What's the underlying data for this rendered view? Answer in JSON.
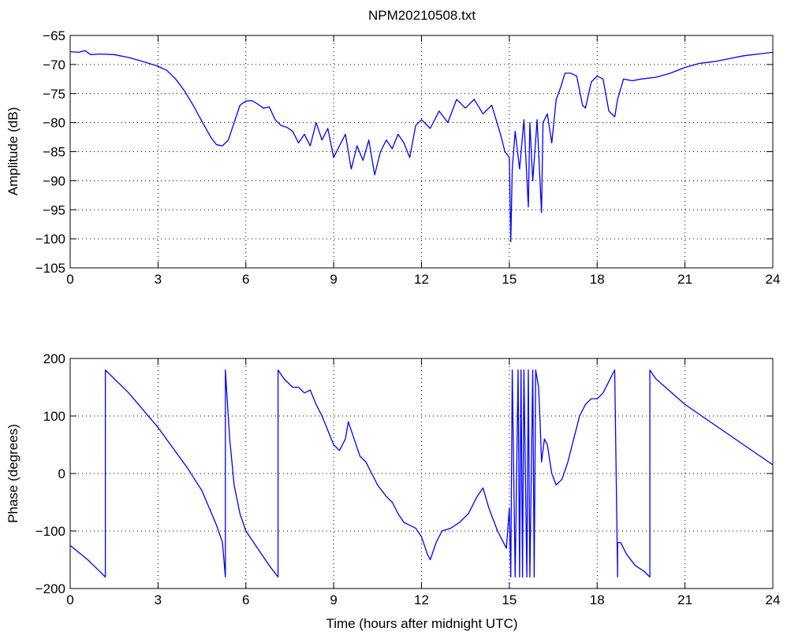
{
  "chart_data": [
    {
      "type": "line",
      "title": "NPM20210508.txt",
      "xlabel": "",
      "ylabel": "Amplitude (dB)",
      "xlim": [
        0,
        24
      ],
      "ylim": [
        -105,
        -65
      ],
      "xticks": [
        0,
        3,
        6,
        9,
        12,
        15,
        18,
        21,
        24
      ],
      "yticks": [
        -65,
        -70,
        -75,
        -80,
        -85,
        -90,
        -95,
        -100,
        -105
      ],
      "xtick_labels": [
        "0",
        "3",
        "6",
        "9",
        "12",
        "15",
        "18",
        "21",
        "24"
      ],
      "ytick_labels": [
        "−65",
        "−70",
        "−75",
        "−80",
        "−85",
        "−90",
        "−95",
        "−100",
        "−105"
      ],
      "grid": true,
      "color": "#0000ff",
      "series": [
        {
          "x": [
            0,
            0.3,
            0.5,
            0.7,
            1.0,
            1.5,
            2.0,
            2.5,
            3.0,
            3.3,
            3.6,
            3.9,
            4.2,
            4.5,
            4.8,
            5.0,
            5.2,
            5.4,
            5.6,
            5.8,
            6.0,
            6.2,
            6.4,
            6.6,
            6.8,
            7.0,
            7.2,
            7.4,
            7.6,
            7.8,
            8.0,
            8.2,
            8.4,
            8.6,
            8.8,
            9.0,
            9.2,
            9.4,
            9.6,
            9.8,
            10.0,
            10.2,
            10.4,
            10.6,
            10.8,
            11.0,
            11.2,
            11.4,
            11.6,
            11.8,
            12.0,
            12.3,
            12.6,
            12.9,
            13.2,
            13.5,
            13.8,
            14.1,
            14.4,
            14.7,
            14.85,
            15.0,
            15.05,
            15.1,
            15.2,
            15.35,
            15.5,
            15.65,
            15.7,
            15.8,
            15.95,
            16.1,
            16.15,
            16.3,
            16.45,
            16.6,
            16.75,
            16.9,
            17.1,
            17.3,
            17.5,
            17.6,
            17.8,
            18.0,
            18.2,
            18.4,
            18.6,
            18.7,
            18.9,
            19.2,
            19.5,
            20.0,
            20.5,
            21.0,
            21.5,
            22.0,
            22.5,
            23.0,
            23.5,
            24.0
          ],
          "values": [
            -67.8,
            -67.9,
            -67.6,
            -68.3,
            -68.2,
            -68.3,
            -68.8,
            -69.5,
            -70.3,
            -71.0,
            -72.5,
            -74.5,
            -77.0,
            -79.8,
            -82.5,
            -83.8,
            -84.0,
            -83.0,
            -80.0,
            -77.0,
            -76.3,
            -76.2,
            -76.8,
            -77.5,
            -77.3,
            -79.5,
            -80.5,
            -80.8,
            -81.5,
            -83.5,
            -82.0,
            -84.0,
            -80.0,
            -83.0,
            -81.0,
            -86.0,
            -84.0,
            -82.0,
            -88.0,
            -84.0,
            -86.5,
            -83.0,
            -89.0,
            -85.0,
            -83.0,
            -84.5,
            -82.0,
            -83.5,
            -86.0,
            -80.5,
            -79.5,
            -81.0,
            -78.0,
            -80.0,
            -76.0,
            -77.5,
            -76.0,
            -78.5,
            -77.0,
            -82.0,
            -85.0,
            -86.0,
            -100.5,
            -88.0,
            -81.5,
            -88.0,
            -79.5,
            -94.5,
            -80.0,
            -90.0,
            -79.5,
            -95.5,
            -80.0,
            -78.5,
            -83.5,
            -76.0,
            -74.0,
            -71.5,
            -71.5,
            -72.0,
            -77.0,
            -77.5,
            -73.0,
            -72.0,
            -72.5,
            -78.0,
            -79.0,
            -76.0,
            -72.5,
            -72.8,
            -72.5,
            -72.2,
            -71.5,
            -70.5,
            -69.8,
            -69.5,
            -69.0,
            -68.5,
            -68.2,
            -67.9
          ]
        }
      ]
    },
    {
      "type": "line",
      "title": "",
      "xlabel": "Time (hours after midnight UTC)",
      "ylabel": "Phase (degrees)",
      "xlim": [
        0,
        24
      ],
      "ylim": [
        -200,
        200
      ],
      "xticks": [
        0,
        3,
        6,
        9,
        12,
        15,
        18,
        21,
        24
      ],
      "yticks": [
        200,
        100,
        0,
        -100,
        -200
      ],
      "xtick_labels": [
        "0",
        "3",
        "6",
        "9",
        "12",
        "15",
        "18",
        "21",
        "24"
      ],
      "ytick_labels": [
        "200",
        "100",
        "0",
        "−100",
        "−200"
      ],
      "grid": true,
      "color": "#0000ff",
      "series": [
        {
          "x": [
            0,
            0.6,
            1.2,
            1.2,
            2.0,
            3.0,
            4.0,
            4.5,
            5.0,
            5.2,
            5.3,
            5.3,
            5.35,
            5.45,
            5.6,
            5.8,
            6.0,
            6.4,
            6.8,
            7.1,
            7.1,
            7.3,
            7.6,
            7.8,
            8.0,
            8.2,
            8.4,
            8.6,
            8.8,
            9.0,
            9.2,
            9.4,
            9.5,
            9.7,
            9.9,
            10.1,
            10.3,
            10.5,
            10.8,
            11.0,
            11.2,
            11.4,
            11.6,
            11.8,
            12.0,
            12.2,
            12.3,
            12.5,
            12.7,
            13.0,
            13.3,
            13.6,
            13.9,
            14.1,
            14.3,
            14.6,
            14.9,
            15.0,
            15.05,
            15.1,
            15.2,
            15.3,
            15.35,
            15.4,
            15.45,
            15.5,
            15.6,
            15.65,
            15.7,
            15.8,
            15.85,
            15.9,
            16.0,
            16.05,
            16.1,
            16.2,
            16.3,
            16.45,
            16.6,
            16.8,
            17.0,
            17.2,
            17.4,
            17.6,
            17.8,
            18.0,
            18.2,
            18.4,
            18.6,
            18.7,
            18.7,
            18.8,
            19.0,
            19.3,
            19.6,
            19.8,
            19.8,
            20.0,
            21.0,
            22.0,
            23.0,
            24.0
          ],
          "values": [
            -125,
            -150,
            -180,
            180,
            140,
            80,
            10,
            -30,
            -90,
            -120,
            -180,
            180,
            140,
            60,
            -20,
            -70,
            -100,
            -130,
            -160,
            -180,
            180,
            165,
            150,
            150,
            140,
            145,
            120,
            100,
            75,
            50,
            40,
            60,
            90,
            60,
            30,
            20,
            0,
            -20,
            -40,
            -50,
            -70,
            -85,
            -90,
            -95,
            -110,
            -140,
            -150,
            -120,
            -100,
            -95,
            -85,
            -70,
            -40,
            -25,
            -60,
            -100,
            -130,
            -60,
            -180,
            180,
            -180,
            180,
            -180,
            180,
            -180,
            180,
            -180,
            180,
            -180,
            180,
            -180,
            180,
            150,
            90,
            20,
            60,
            50,
            0,
            -20,
            -10,
            20,
            60,
            100,
            120,
            130,
            130,
            140,
            160,
            180,
            -180,
            -120,
            -120,
            -140,
            -160,
            -170,
            -180,
            180,
            165,
            120,
            85,
            50,
            15
          ]
        }
      ]
    }
  ]
}
